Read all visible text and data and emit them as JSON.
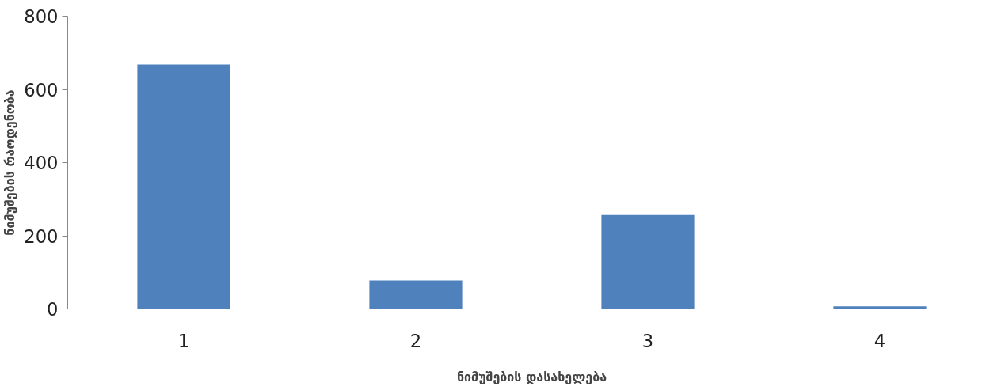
{
  "chart_data": {
    "type": "bar",
    "xlabel": "ნიმუშების დასახელება",
    "ylabel": "ნიმუშების რაოდენობა",
    "categories": [
      "1",
      "2",
      "3",
      "4"
    ],
    "values": [
      668,
      78,
      257,
      7
    ],
    "color": "#4f81bd",
    "ylim": [
      0,
      800
    ],
    "yticks": [
      0,
      200,
      400,
      600,
      800
    ],
    "grid": false
  }
}
